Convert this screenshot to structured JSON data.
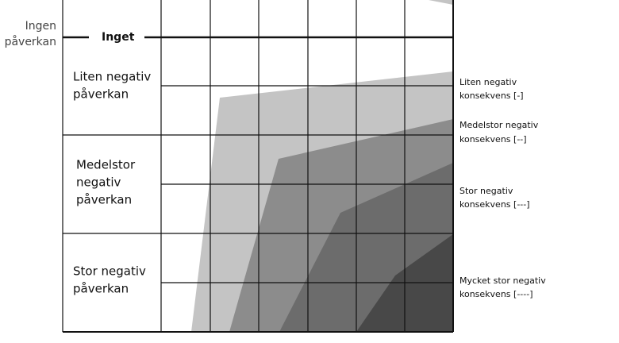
{
  "outside_label": [
    "Ingen",
    "påverkan"
  ],
  "baseline_label": "Inget",
  "row_labels": [
    [
      "Liten negativ",
      "påverkan"
    ],
    [
      "Medelstor",
      "negativ",
      "påverkan"
    ],
    [
      "Stor negativ",
      "påverkan"
    ]
  ],
  "consequence_labels": [
    [
      "Liten negativ",
      "konsekvens [-]"
    ],
    [
      "Medelstor negativ",
      "konsekvens [--]"
    ],
    [
      "Stor negativ",
      "konsekvens [---]"
    ],
    [
      "Mycket stor negativ",
      "konsekvens [----]"
    ]
  ]
}
